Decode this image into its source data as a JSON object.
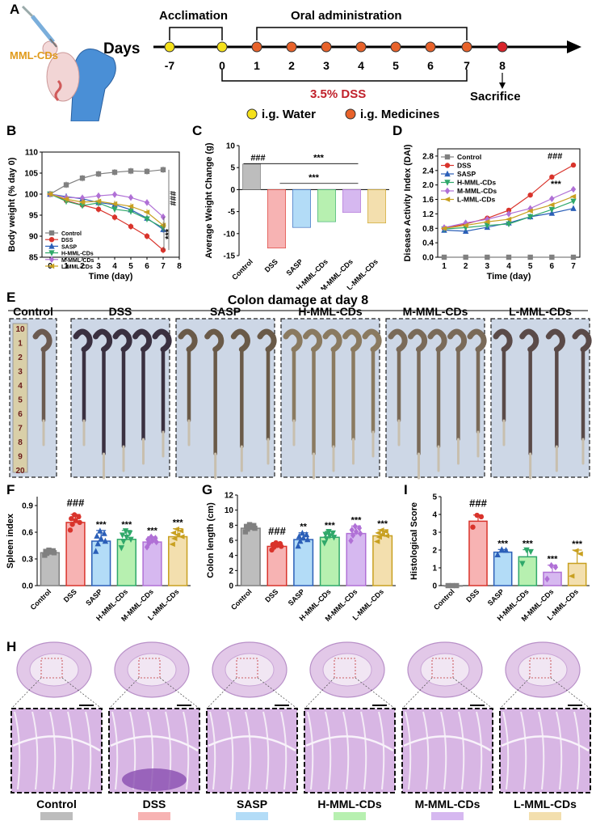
{
  "panel_labels": {
    "A": "A",
    "B": "B",
    "C": "C",
    "D": "D",
    "E": "E",
    "F": "F",
    "G": "G",
    "H": "H",
    "I": "I"
  },
  "colors": {
    "control": "#808080",
    "dss": "#d9332b",
    "sasp": "#2b5fb8",
    "h": "#2fa86a",
    "m": "#b070d6",
    "l": "#c8a020",
    "control_fill": "#bdbdbd",
    "dss_fill": "#f7b3b3",
    "sasp_fill": "#b3dcf7",
    "h_fill": "#b7f0b0",
    "m_fill": "#d6b8f0",
    "l_fill": "#f3dfae",
    "water": "#f5e11a",
    "medicine": "#e8622a",
    "sacrifice": "#d8232a",
    "dss_text": "#c0202a",
    "mml_text": "#e09a1a"
  },
  "schematic": {
    "mml_label": "MML-CDs",
    "days_label": "Days",
    "acclimation": "Acclimation",
    "oral": "Oral administration",
    "dss": "3.5% DSS",
    "sacrifice": "Sacrifice",
    "ticks": [
      "-7",
      "0",
      "1",
      "2",
      "3",
      "4",
      "5",
      "6",
      "7",
      "8"
    ],
    "legend_water": "i.g. Water",
    "legend_med": "i.g. Medicines"
  },
  "group_names": [
    "Control",
    "DSS",
    "SASP",
    "H-MML-CDs",
    "M-MML-CDs",
    "L-MML-CDs"
  ],
  "panel_e": {
    "title": "Colon damage at day 8",
    "ruler": [
      "10",
      "1",
      "2",
      "3",
      "4",
      "5",
      "6",
      "7",
      "8",
      "9",
      "20"
    ]
  },
  "chart_data": [
    {
      "id": "B",
      "type": "line",
      "ylabel": "Body weight (% day 0)",
      "xlabel": "Time (day)",
      "ylim": [
        85,
        110
      ],
      "yticks": [
        "85",
        "90",
        "95",
        "100",
        "105",
        "110"
      ],
      "xlim": [
        -0.5,
        8
      ],
      "xticks": [
        "0",
        "1",
        "2",
        "3",
        "4",
        "5",
        "6",
        "7",
        "8"
      ],
      "x": [
        0,
        1,
        2,
        3,
        4,
        5,
        6,
        7
      ],
      "series": [
        {
          "name": "Control",
          "values": [
            100,
            102.2,
            103.8,
            104.8,
            105.2,
            105.5,
            105.4,
            105.8
          ]
        },
        {
          "name": "DSS",
          "values": [
            100,
            98.5,
            97.4,
            96.4,
            94.5,
            92.3,
            90,
            86.7
          ]
        },
        {
          "name": "SASP",
          "values": [
            100,
            99.4,
            98.9,
            98,
            97.5,
            96.3,
            94.3,
            91.6
          ]
        },
        {
          "name": "H-MML-CDs",
          "values": [
            100,
            98.3,
            97.3,
            97.9,
            96.4,
            95.9,
            94.1,
            92
          ]
        },
        {
          "name": "M-MML-CDs",
          "values": [
            100,
            99.2,
            99.1,
            99.6,
            99.9,
            99.2,
            98,
            94.6
          ]
        },
        {
          "name": "L-MML-CDs",
          "values": [
            100,
            98.8,
            98.1,
            98.3,
            97.7,
            97.1,
            95.7,
            92.6
          ]
        }
      ],
      "annotations": [
        "###",
        "***"
      ]
    },
    {
      "id": "C",
      "type": "bar",
      "ylabel": "Average Weight Change (g)",
      "ylim": [
        -15,
        10
      ],
      "yticks": [
        "-15",
        "-10",
        "-5",
        "0",
        "5",
        "10"
      ],
      "categories": [
        "Control",
        "DSS",
        "SASP",
        "H-MML-CDs",
        "M-MML-CDs",
        "L-MML-CDs"
      ],
      "values": [
        5.8,
        -13.3,
        -8.6,
        -7.3,
        -5.2,
        -7.6
      ],
      "annotations": [
        "###",
        "***",
        "***"
      ]
    },
    {
      "id": "D",
      "type": "line",
      "ylabel": "Disease Activity Index (DAI)",
      "xlabel": "Time (day)",
      "ylim": [
        0,
        3.0
      ],
      "yticks": [
        "0.0",
        "0.4",
        "0.8",
        "1.2",
        "1.6",
        "2.0",
        "2.4",
        "2.8"
      ],
      "xlim": [
        0.7,
        7.3
      ],
      "xticks": [
        "1",
        "2",
        "3",
        "4",
        "5",
        "6",
        "7"
      ],
      "x": [
        1,
        2,
        3,
        4,
        5,
        6,
        7
      ],
      "series": [
        {
          "name": "Control",
          "values": [
            0,
            0,
            0,
            0,
            0,
            0,
            0
          ]
        },
        {
          "name": "DSS",
          "values": [
            0.8,
            0.92,
            1.08,
            1.3,
            1.72,
            2.22,
            2.55
          ]
        },
        {
          "name": "SASP",
          "values": [
            0.75,
            0.72,
            0.83,
            0.95,
            1.12,
            1.22,
            1.35
          ]
        },
        {
          "name": "H-MML-CDs",
          "values": [
            0.78,
            0.82,
            0.88,
            0.92,
            1.12,
            1.32,
            1.55
          ]
        },
        {
          "name": "M-MML-CDs",
          "values": [
            0.82,
            0.95,
            1.05,
            1.2,
            1.35,
            1.62,
            1.88
          ]
        },
        {
          "name": "L-MML-CDs",
          "values": [
            0.8,
            0.88,
            0.98,
            1.05,
            1.28,
            1.45,
            1.68
          ]
        }
      ],
      "annotations": [
        "###",
        "***"
      ]
    },
    {
      "id": "F",
      "type": "bar",
      "ylabel": "Spleen index",
      "ylim": [
        0,
        1.0
      ],
      "yticks": [
        "0.0",
        "0.3",
        "0.6",
        "0.9"
      ],
      "categories": [
        "Control",
        "DSS",
        "SASP",
        "H-MML-CDs",
        "M-MML-CDs",
        "L-MML-CDs"
      ],
      "values": [
        0.37,
        0.71,
        0.5,
        0.52,
        0.49,
        0.55
      ],
      "errors": [
        0.03,
        0.09,
        0.12,
        0.1,
        0.06,
        0.09
      ],
      "annotations": [
        "###",
        "***",
        "***",
        "***",
        "***"
      ]
    },
    {
      "id": "G",
      "type": "bar",
      "ylabel": "Colon length (cm)",
      "ylim": [
        0,
        12
      ],
      "yticks": [
        "0",
        "2",
        "4",
        "6",
        "8",
        "10",
        "12"
      ],
      "categories": [
        "Control",
        "DSS",
        "SASP",
        "H-MML-CDs",
        "M-MML-CDs",
        "L-MML-CDs"
      ],
      "values": [
        7.6,
        5.2,
        6.1,
        6.4,
        6.9,
        6.6
      ],
      "errors": [
        0.5,
        0.5,
        0.9,
        0.8,
        1.0,
        0.8
      ],
      "annotations": [
        "###",
        "**",
        "***",
        "***",
        "***"
      ]
    },
    {
      "id": "I",
      "type": "bar",
      "ylabel": "Histological Score",
      "ylim": [
        0,
        5
      ],
      "yticks": [
        "0",
        "1",
        "2",
        "3",
        "4",
        "5"
      ],
      "categories": [
        "Control",
        "DSS",
        "SASP",
        "H-MML-CDs",
        "M-MML-CDs",
        "L-MML-CDs"
      ],
      "values": [
        0,
        3.62,
        1.88,
        1.62,
        0.75,
        1.25
      ],
      "errors": [
        0,
        0.35,
        0.15,
        0.4,
        0.4,
        0.75
      ],
      "annotations": [
        "###",
        "***",
        "***",
        "***",
        "***"
      ]
    }
  ]
}
